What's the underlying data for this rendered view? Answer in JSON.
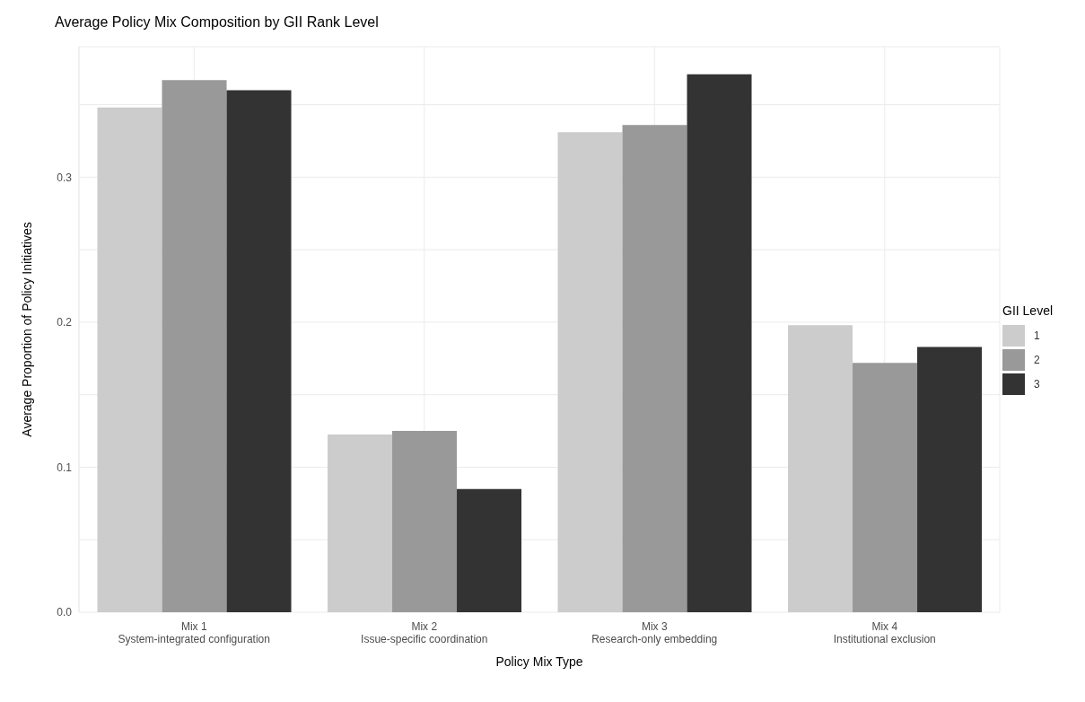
{
  "chart_data": {
    "type": "bar",
    "title": "Average Policy Mix Composition by GII Rank Level",
    "xlabel": "Policy Mix Type",
    "ylabel": "Average Proportion of Policy Initiatives",
    "legend_title": "GII Level",
    "categories": [
      "Mix 1\nSystem-integrated configuration",
      "Mix 2\nIssue-specific coordination",
      "Mix 3\nResearch-only embedding",
      "Mix 4\nInstitutional exclusion"
    ],
    "series": [
      {
        "name": "1",
        "color": "#cccccc",
        "values": [
          0.348,
          0.1225,
          0.331,
          0.198
        ]
      },
      {
        "name": "2",
        "color": "#999999",
        "values": [
          0.367,
          0.125,
          0.336,
          0.172
        ]
      },
      {
        "name": "3",
        "color": "#333333",
        "values": [
          0.36,
          0.085,
          0.371,
          0.183
        ]
      }
    ],
    "ylim": [
      0,
      0.39
    ],
    "yticks": [
      {
        "value": 0,
        "label": "0.0"
      },
      {
        "value": 0.05,
        "label": null
      },
      {
        "value": 0.1,
        "label": "0.1"
      },
      {
        "value": 0.15,
        "label": null
      },
      {
        "value": 0.2,
        "label": "0.2"
      },
      {
        "value": 0.25,
        "label": null
      },
      {
        "value": 0.3,
        "label": "0.3"
      },
      {
        "value": 0.35,
        "label": null
      }
    ],
    "grid": true,
    "legend": "right"
  }
}
